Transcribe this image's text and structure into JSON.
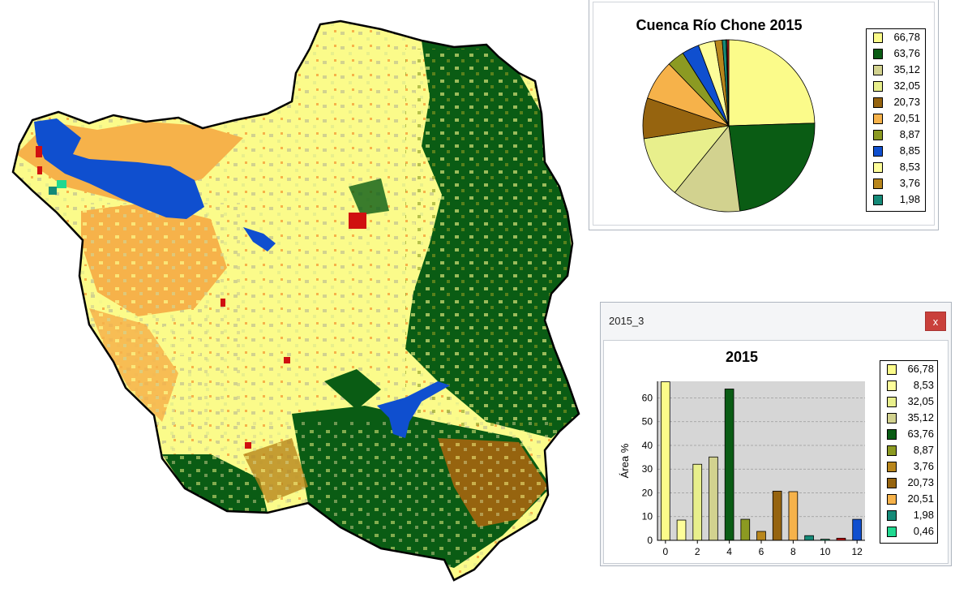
{
  "colors": {
    "light_yellow": "#fbfb8a",
    "dark_green": "#0a5c14",
    "olive_pale": "#d2d28f",
    "yellow_green": "#e8ef8c",
    "brown": "#96640f",
    "orange": "#f6b24a",
    "olive": "#8c9a22",
    "blue": "#0f4fcf",
    "pale_yellow": "#fdfd9a",
    "tan": "#b8861c",
    "teal": "#158a78",
    "mint": "#20d890",
    "red": "#d01010",
    "boundary": "#000000"
  },
  "map": {
    "icons": [
      "watershed-map"
    ]
  },
  "pie_window": {
    "title": "Cuenca Río Chone 2015",
    "legend": [
      {
        "label": "66,78",
        "color": "#fbfb8a"
      },
      {
        "label": "63,76",
        "color": "#0a5c14"
      },
      {
        "label": "35,12",
        "color": "#d2d28f"
      },
      {
        "label": "32,05",
        "color": "#e8ef8c"
      },
      {
        "label": "20,73",
        "color": "#96640f"
      },
      {
        "label": "20,51",
        "color": "#f6b24a"
      },
      {
        "label": "8,87",
        "color": "#8c9a22"
      },
      {
        "label": "8,85",
        "color": "#0f4fcf"
      },
      {
        "label": "8,53",
        "color": "#fdfd9a"
      },
      {
        "label": "3,76",
        "color": "#b8861c"
      },
      {
        "label": "1,98",
        "color": "#158a78"
      }
    ]
  },
  "bar_window": {
    "window_title": "2015_3",
    "close_label": "x",
    "title": "2015",
    "legend": [
      {
        "label": "66,78",
        "color": "#fbfb8a"
      },
      {
        "label": "8,53",
        "color": "#fdfd9a"
      },
      {
        "label": "32,05",
        "color": "#e8ef8c"
      },
      {
        "label": "35,12",
        "color": "#d2d28f"
      },
      {
        "label": "63,76",
        "color": "#0a5c14"
      },
      {
        "label": "8,87",
        "color": "#8c9a22"
      },
      {
        "label": "3,76",
        "color": "#b8861c"
      },
      {
        "label": "20,73",
        "color": "#96640f"
      },
      {
        "label": "20,51",
        "color": "#f6b24a"
      },
      {
        "label": "1,98",
        "color": "#158a78"
      },
      {
        "label": "0,46",
        "color": "#20d890"
      }
    ]
  },
  "chart_data": [
    {
      "type": "pie",
      "title": "Cuenca Río Chone 2015",
      "legend_position": "right",
      "slices": [
        {
          "label": "66,78",
          "value": 66.78,
          "color": "#fbfb8a"
        },
        {
          "label": "63,76",
          "value": 63.76,
          "color": "#0a5c14"
        },
        {
          "label": "35,12",
          "value": 35.12,
          "color": "#d2d28f"
        },
        {
          "label": "32,05",
          "value": 32.05,
          "color": "#e8ef8c"
        },
        {
          "label": "20,73",
          "value": 20.73,
          "color": "#96640f"
        },
        {
          "label": "20,51",
          "value": 20.51,
          "color": "#f6b24a"
        },
        {
          "label": "8,87",
          "value": 8.87,
          "color": "#8c9a22"
        },
        {
          "label": "8,85",
          "value": 8.85,
          "color": "#0f4fcf"
        },
        {
          "label": "8,53",
          "value": 8.53,
          "color": "#fdfd9a"
        },
        {
          "label": "3,76",
          "value": 3.76,
          "color": "#b8861c"
        },
        {
          "label": "1,98",
          "value": 1.98,
          "color": "#158a78"
        },
        {
          "label": "",
          "value": 0.46,
          "color": "#20d890"
        },
        {
          "label": "",
          "value": 0.9,
          "color": "#d01010"
        }
      ]
    },
    {
      "type": "bar",
      "title": "2015",
      "ylabel": "Área %",
      "xlabel": "",
      "xlim": [
        -0.5,
        12.5
      ],
      "ylim": [
        0,
        67
      ],
      "xticks": [
        0,
        2,
        4,
        6,
        8,
        10,
        12
      ],
      "yticks": [
        0,
        10,
        20,
        30,
        40,
        50,
        60
      ],
      "grid": true,
      "legend_position": "right",
      "bars": [
        {
          "x": 0,
          "value": 66.78,
          "color": "#fbfb8a"
        },
        {
          "x": 1,
          "value": 8.53,
          "color": "#fdfd9a"
        },
        {
          "x": 2,
          "value": 32.05,
          "color": "#e8ef8c"
        },
        {
          "x": 3,
          "value": 35.12,
          "color": "#d2d28f"
        },
        {
          "x": 4,
          "value": 63.76,
          "color": "#0a5c14"
        },
        {
          "x": 5,
          "value": 8.87,
          "color": "#8c9a22"
        },
        {
          "x": 6,
          "value": 3.76,
          "color": "#b8861c"
        },
        {
          "x": 7,
          "value": 20.73,
          "color": "#96640f"
        },
        {
          "x": 8,
          "value": 20.51,
          "color": "#f6b24a"
        },
        {
          "x": 9,
          "value": 1.98,
          "color": "#158a78"
        },
        {
          "x": 10,
          "value": 0.46,
          "color": "#20d890"
        },
        {
          "x": 11,
          "value": 0.9,
          "color": "#d01010"
        },
        {
          "x": 12,
          "value": 8.85,
          "color": "#0f4fcf"
        }
      ]
    }
  ]
}
